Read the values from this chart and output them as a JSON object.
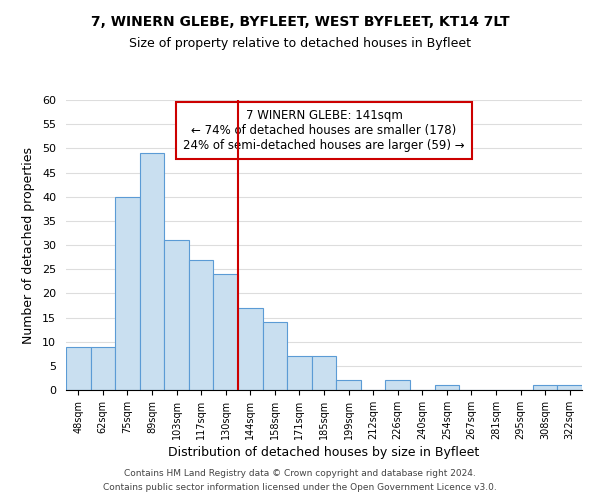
{
  "title": "7, WINERN GLEBE, BYFLEET, WEST BYFLEET, KT14 7LT",
  "subtitle": "Size of property relative to detached houses in Byfleet",
  "xlabel": "Distribution of detached houses by size in Byfleet",
  "ylabel": "Number of detached properties",
  "bar_labels": [
    "48sqm",
    "62sqm",
    "75sqm",
    "89sqm",
    "103sqm",
    "117sqm",
    "130sqm",
    "144sqm",
    "158sqm",
    "171sqm",
    "185sqm",
    "199sqm",
    "212sqm",
    "226sqm",
    "240sqm",
    "254sqm",
    "267sqm",
    "281sqm",
    "295sqm",
    "308sqm",
    "322sqm"
  ],
  "bar_values": [
    9,
    9,
    40,
    49,
    31,
    27,
    24,
    17,
    14,
    7,
    7,
    2,
    0,
    2,
    0,
    1,
    0,
    0,
    0,
    1,
    1
  ],
  "bar_color": "#c9dff0",
  "bar_edge_color": "#5b9bd5",
  "vline_x_index": 7,
  "vline_color": "#cc0000",
  "ylim": [
    0,
    60
  ],
  "yticks": [
    0,
    5,
    10,
    15,
    20,
    25,
    30,
    35,
    40,
    45,
    50,
    55,
    60
  ],
  "annotation_title": "7 WINERN GLEBE: 141sqm",
  "annotation_line1": "← 74% of detached houses are smaller (178)",
  "annotation_line2": "24% of semi-detached houses are larger (59) →",
  "annotation_box_color": "#ffffff",
  "annotation_box_edge": "#cc0000",
  "footer1": "Contains HM Land Registry data © Crown copyright and database right 2024.",
  "footer2": "Contains public sector information licensed under the Open Government Licence v3.0.",
  "background_color": "#ffffff",
  "grid_color": "#dddddd"
}
